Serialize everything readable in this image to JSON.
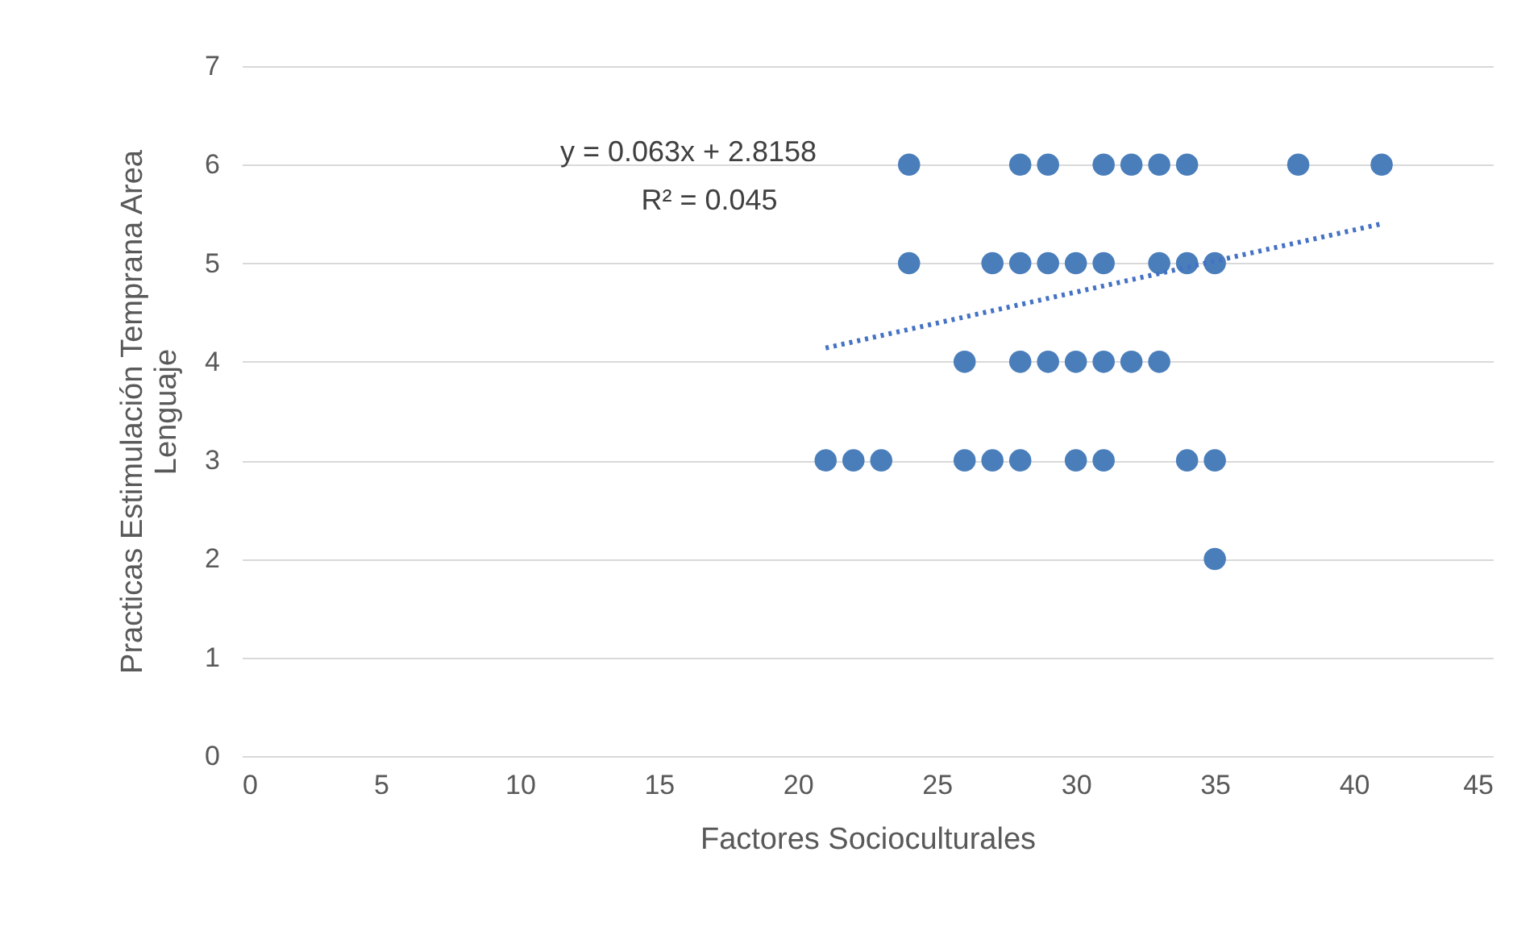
{
  "chart_data": {
    "type": "scatter",
    "xlabel": "Factores Socioculturales",
    "ylabel": "Practicas Estimulación Temprana Area Lenguaje",
    "xlim": [
      0,
      45
    ],
    "xticks": [
      0,
      5,
      10,
      15,
      20,
      25,
      30,
      35,
      40,
      45
    ],
    "ylim": [
      0,
      7
    ],
    "yticks": [
      0,
      1,
      2,
      3,
      4,
      5,
      6,
      7
    ],
    "grid": "y",
    "marker": "circle",
    "annotations": [
      "y = 0.063x + 2.8158",
      "R² = 0.045"
    ],
    "series": [
      {
        "color": "#4a7ebb",
        "x": [
          24,
          28,
          29,
          31,
          32,
          33,
          34,
          38,
          41,
          24,
          27,
          28,
          29,
          30,
          31,
          33,
          34,
          35,
          26,
          28,
          29,
          30,
          31,
          32,
          33,
          21,
          22,
          23,
          26,
          27,
          28,
          30,
          31,
          34,
          35,
          35
        ],
        "values": [
          6,
          6,
          6,
          6,
          6,
          6,
          6,
          6,
          6,
          5,
          5,
          5,
          5,
          5,
          5,
          5,
          5,
          5,
          4,
          4,
          4,
          4,
          4,
          4,
          4,
          3,
          3,
          3,
          3,
          3,
          3,
          3,
          3,
          3,
          3,
          2
        ]
      },
      {
        "type": "line",
        "color": "#4472c4",
        "line_style": "dotted",
        "marker": "none",
        "x": [
          21,
          41
        ],
        "values": [
          4.14,
          5.4
        ]
      }
    ]
  }
}
